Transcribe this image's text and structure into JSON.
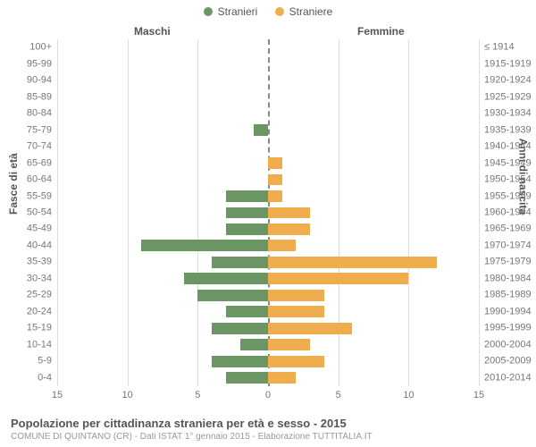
{
  "legend": {
    "male": {
      "label": "Stranieri",
      "color": "#6b9562"
    },
    "female": {
      "label": "Straniere",
      "color": "#f0ad4e"
    }
  },
  "headers": {
    "male": "Maschi",
    "female": "Femmine"
  },
  "axis_titles": {
    "left": "Fasce di età",
    "right": "Anni di nascita"
  },
  "xaxis": {
    "max": 15,
    "ticks": [
      15,
      10,
      5,
      0,
      5,
      10,
      15
    ]
  },
  "plot": {
    "background": "#ffffff",
    "gridline_color": "#dddddd",
    "centerline_color": "#888888",
    "left_bar_color": "#6b9562",
    "right_bar_color": "#f0ad4e",
    "label_fontsize": 11,
    "label_color": "#777777"
  },
  "rows": [
    {
      "age": "100+",
      "birth": "≤ 1914",
      "m": 0,
      "f": 0
    },
    {
      "age": "95-99",
      "birth": "1915-1919",
      "m": 0,
      "f": 0
    },
    {
      "age": "90-94",
      "birth": "1920-1924",
      "m": 0,
      "f": 0
    },
    {
      "age": "85-89",
      "birth": "1925-1929",
      "m": 0,
      "f": 0
    },
    {
      "age": "80-84",
      "birth": "1930-1934",
      "m": 0,
      "f": 0
    },
    {
      "age": "75-79",
      "birth": "1935-1939",
      "m": 1,
      "f": 0
    },
    {
      "age": "70-74",
      "birth": "1940-1944",
      "m": 0,
      "f": 0
    },
    {
      "age": "65-69",
      "birth": "1945-1949",
      "m": 0,
      "f": 1
    },
    {
      "age": "60-64",
      "birth": "1950-1954",
      "m": 0,
      "f": 1
    },
    {
      "age": "55-59",
      "birth": "1955-1959",
      "m": 3,
      "f": 1
    },
    {
      "age": "50-54",
      "birth": "1960-1964",
      "m": 3,
      "f": 3
    },
    {
      "age": "45-49",
      "birth": "1965-1969",
      "m": 3,
      "f": 3
    },
    {
      "age": "40-44",
      "birth": "1970-1974",
      "m": 9,
      "f": 2
    },
    {
      "age": "35-39",
      "birth": "1975-1979",
      "m": 4,
      "f": 12
    },
    {
      "age": "30-34",
      "birth": "1980-1984",
      "m": 6,
      "f": 10
    },
    {
      "age": "25-29",
      "birth": "1985-1989",
      "m": 5,
      "f": 4
    },
    {
      "age": "20-24",
      "birth": "1990-1994",
      "m": 3,
      "f": 4
    },
    {
      "age": "15-19",
      "birth": "1995-1999",
      "m": 4,
      "f": 6
    },
    {
      "age": "10-14",
      "birth": "2000-2004",
      "m": 2,
      "f": 3
    },
    {
      "age": "5-9",
      "birth": "2005-2009",
      "m": 4,
      "f": 4
    },
    {
      "age": "0-4",
      "birth": "2010-2014",
      "m": 3,
      "f": 2
    }
  ],
  "footer": {
    "title": "Popolazione per cittadinanza straniera per età e sesso - 2015",
    "subtitle": "COMUNE DI QUINTANO (CR) - Dati ISTAT 1° gennaio 2015 - Elaborazione TUTTITALIA.IT"
  }
}
